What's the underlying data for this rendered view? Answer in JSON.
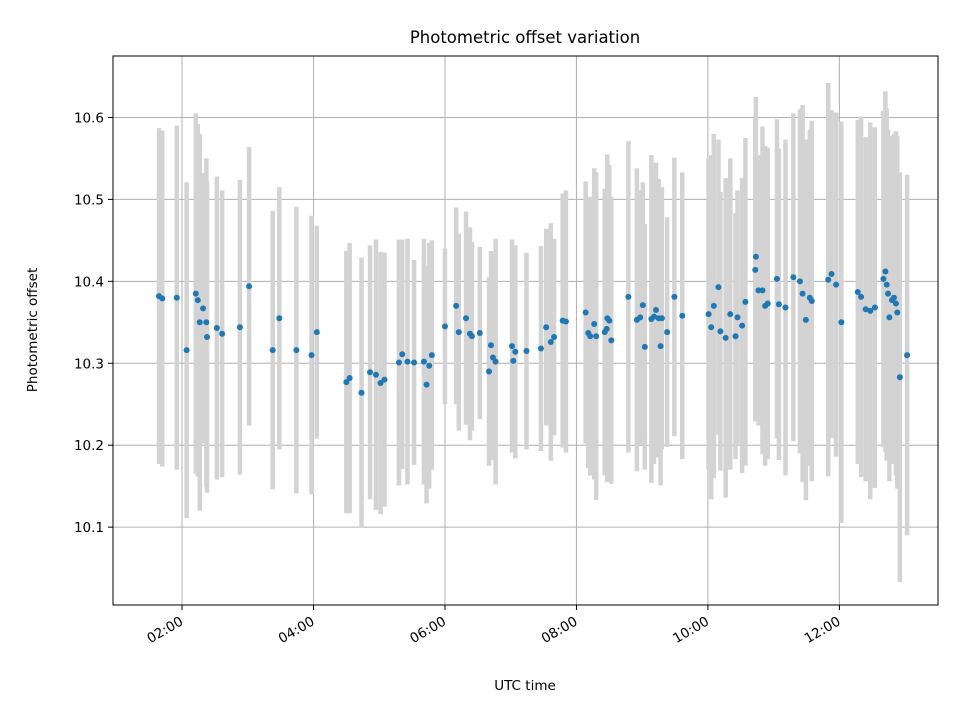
{
  "chart_data": {
    "type": "scatter",
    "title": "Photometric offset variation",
    "xlabel": "UTC time",
    "ylabel": "Photometric offset",
    "x_unit": "hours UTC",
    "xlim": [
      0.95,
      13.5
    ],
    "ylim": [
      10.005,
      10.675
    ],
    "x_ticks": [
      2,
      4,
      6,
      8,
      10,
      12
    ],
    "x_tick_labels": [
      "02:00",
      "04:00",
      "06:00",
      "08:00",
      "10:00",
      "12:00"
    ],
    "y_ticks": [
      10.1,
      10.2,
      10.3,
      10.4,
      10.5,
      10.6
    ],
    "y_tick_labels": [
      "10.1",
      "10.2",
      "10.3",
      "10.4",
      "10.5",
      "10.6"
    ],
    "grid": true,
    "colors": {
      "points": "#1f77b4",
      "errorbars": "#d3d3d3",
      "grid": "#b0b0b0"
    },
    "series": [
      {
        "x": [
          1.65,
          1.7,
          1.92,
          2.07,
          2.21,
          2.24,
          2.27,
          2.32,
          2.37,
          2.38,
          2.53,
          2.61,
          2.88,
          3.02,
          3.38,
          3.48,
          3.74,
          3.97,
          4.05,
          4.5,
          4.55,
          4.73,
          4.86,
          4.95,
          5.02,
          5.08,
          5.3,
          5.35,
          5.43,
          5.53,
          5.68,
          5.72,
          5.76,
          5.8,
          6.0,
          6.17,
          6.21,
          6.32,
          6.38,
          6.41,
          6.53,
          6.67,
          6.7,
          6.73,
          6.77,
          7.02,
          7.04,
          7.07,
          7.24,
          7.46,
          7.54,
          7.61,
          7.66,
          7.79,
          7.84,
          8.14,
          8.18,
          8.21,
          8.27,
          8.3,
          8.43,
          8.46,
          8.47,
          8.5,
          8.53,
          8.79,
          8.92,
          8.97,
          9.01,
          9.04,
          9.14,
          9.18,
          9.21,
          9.25,
          9.28,
          9.3,
          9.38,
          9.49,
          9.61,
          10.01,
          10.05,
          10.09,
          10.16,
          10.19,
          10.27,
          10.34,
          10.42,
          10.45,
          10.52,
          10.57,
          10.72,
          10.73,
          10.77,
          10.83,
          10.87,
          10.91,
          11.05,
          11.08,
          11.18,
          11.3,
          11.4,
          11.44,
          11.49,
          11.55,
          11.58,
          11.83,
          11.88,
          11.95,
          12.03,
          12.28,
          12.33,
          12.4,
          12.47,
          12.54,
          12.67,
          12.7,
          12.72,
          12.74,
          12.76,
          12.8,
          12.83,
          12.86,
          12.88,
          12.92,
          13.03
        ],
        "y": [
          10.382,
          10.379,
          10.38,
          10.316,
          10.385,
          10.377,
          10.35,
          10.367,
          10.35,
          10.332,
          10.343,
          10.336,
          10.344,
          10.394,
          10.316,
          10.355,
          10.316,
          10.31,
          10.338,
          10.277,
          10.282,
          10.264,
          10.289,
          10.286,
          10.276,
          10.28,
          10.301,
          10.311,
          10.302,
          10.301,
          10.302,
          10.274,
          10.297,
          10.31,
          10.345,
          10.37,
          10.338,
          10.355,
          10.336,
          10.333,
          10.337,
          10.29,
          10.322,
          10.307,
          10.302,
          10.321,
          10.303,
          10.314,
          10.315,
          10.318,
          10.344,
          10.326,
          10.332,
          10.352,
          10.351,
          10.362,
          10.337,
          10.333,
          10.348,
          10.333,
          10.338,
          10.342,
          10.355,
          10.352,
          10.328,
          10.381,
          10.353,
          10.356,
          10.371,
          10.32,
          10.354,
          10.357,
          10.365,
          10.355,
          10.321,
          10.355,
          10.338,
          10.381,
          10.358,
          10.36,
          10.344,
          10.37,
          10.393,
          10.339,
          10.331,
          10.36,
          10.333,
          10.356,
          10.346,
          10.375,
          10.414,
          10.43,
          10.389,
          10.389,
          10.37,
          10.373,
          10.403,
          10.372,
          10.368,
          10.405,
          10.4,
          10.385,
          10.353,
          10.38,
          10.376,
          10.402,
          10.409,
          10.396,
          10.35,
          10.387,
          10.381,
          10.366,
          10.364,
          10.368,
          10.403,
          10.412,
          10.396,
          10.385,
          10.356,
          10.377,
          10.38,
          10.373,
          10.362,
          10.283,
          10.31
        ],
        "yerr": [
          0.205,
          0.205,
          0.21,
          0.205,
          0.22,
          0.215,
          0.23,
          0.165,
          0.2,
          0.19,
          0.185,
          0.175,
          0.18,
          0.17,
          0.17,
          0.16,
          0.175,
          0.17,
          0.13,
          0.16,
          0.165,
          0.165,
          0.155,
          0.165,
          0.16,
          0.155,
          0.15,
          0.14,
          0.15,
          0.125,
          0.15,
          0.145,
          0.15,
          0.14,
          0.095,
          0.12,
          0.12,
          0.13,
          0.13,
          0.115,
          0.105,
          0.115,
          0.115,
          0.125,
          0.15,
          0.13,
          0.105,
          0.13,
          0.12,
          0.125,
          0.12,
          0.145,
          0.12,
          0.155,
          0.16,
          0.16,
          0.165,
          0.17,
          0.19,
          0.2,
          0.175,
          0.17,
          0.2,
          0.19,
          0.175,
          0.19,
          0.185,
          0.155,
          0.15,
          0.15,
          0.2,
          0.18,
          0.18,
          0.17,
          0.17,
          0.16,
          0.14,
          0.17,
          0.175,
          0.19,
          0.21,
          0.21,
          0.18,
          0.17,
          0.195,
          0.19,
          0.15,
          0.155,
          0.18,
          0.2,
          0.185,
          0.195,
          0.165,
          0.2,
          0.195,
          0.19,
          0.195,
          0.19,
          0.205,
          0.2,
          0.21,
          0.23,
          0.22,
          0.205,
          0.22,
          0.24,
          0.2,
          0.21,
          0.245,
          0.21,
          0.22,
          0.21,
          0.23,
          0.22,
          0.205,
          0.22,
          0.215,
          0.2,
          0.2,
          0.2,
          0.2,
          0.21,
          0.215,
          0.25,
          0.22
        ]
      }
    ]
  }
}
